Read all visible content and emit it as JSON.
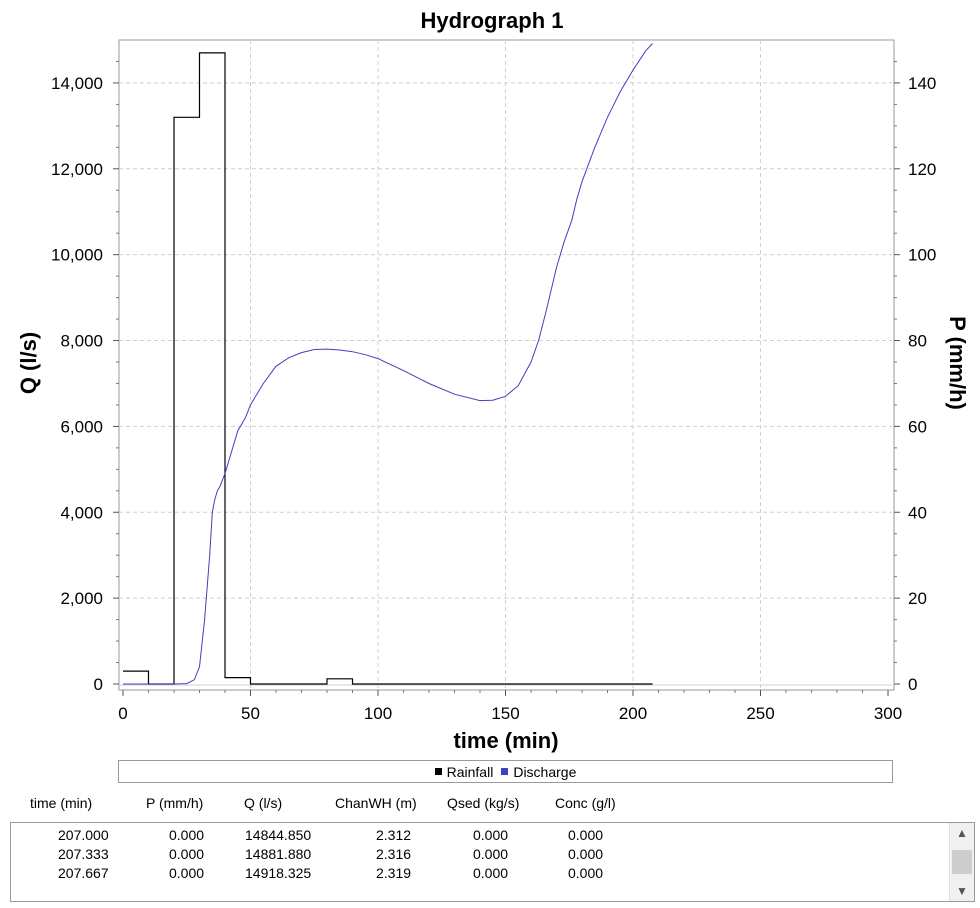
{
  "chart_data": {
    "type": "line",
    "title": "Hydrograph 1",
    "xlabel": "time (min)",
    "ylabel": "Q (l/s)",
    "y2label": "P (mm/h)",
    "xlim": [
      0,
      300
    ],
    "ylim": [
      0,
      15000
    ],
    "y2lim": [
      0,
      150
    ],
    "xticks": [
      "0",
      "50",
      "100",
      "150",
      "200",
      "250",
      "300"
    ],
    "yticks": [
      "0",
      "2,000",
      "4,000",
      "6,000",
      "8,000",
      "10,000",
      "12,000",
      "14,000"
    ],
    "y2ticks": [
      "0",
      "20",
      "40",
      "60",
      "80",
      "100",
      "120",
      "140"
    ],
    "grid": true,
    "legend_position": "bottom",
    "series": [
      {
        "name": "Rainfall",
        "axis": "right",
        "style": "step",
        "color": "#000000",
        "x": [
          0,
          10,
          10,
          20,
          20,
          30,
          30,
          40,
          40,
          50,
          50,
          80,
          80,
          90,
          90,
          207.667
        ],
        "y": [
          3,
          3,
          0,
          0,
          132,
          132,
          147,
          147,
          1.5,
          1.5,
          0,
          0,
          1.2,
          1.2,
          0,
          0
        ]
      },
      {
        "name": "Discharge",
        "axis": "left",
        "style": "line",
        "color": "#4040c0",
        "x": [
          0,
          20,
          25,
          28,
          30,
          32,
          34,
          35,
          36,
          37,
          38,
          40,
          42,
          45,
          48,
          50,
          55,
          60,
          65,
          70,
          75,
          80,
          85,
          90,
          95,
          100,
          110,
          120,
          130,
          140,
          145,
          150,
          155,
          160,
          163,
          166,
          170,
          173,
          176,
          178,
          180,
          185,
          190,
          195,
          200,
          205,
          207.667
        ],
        "y": [
          0,
          0,
          10,
          100,
          400,
          1500,
          3000,
          4000,
          4300,
          4500,
          4600,
          4900,
          5300,
          5900,
          6200,
          6500,
          7000,
          7400,
          7600,
          7720,
          7790,
          7800,
          7780,
          7740,
          7670,
          7580,
          7300,
          7000,
          6750,
          6600,
          6610,
          6700,
          6950,
          7500,
          8000,
          8700,
          9700,
          10300,
          10800,
          11300,
          11700,
          12500,
          13200,
          13800,
          14300,
          14750,
          14918.325
        ]
      }
    ]
  },
  "table": {
    "headers": [
      "time (min)",
      "P (mm/h)",
      "Q (l/s)",
      "ChanWH (m)",
      "Qsed (kg/s)",
      "Conc (g/l)"
    ],
    "rows": [
      [
        "207.000",
        "0.000",
        "14844.850",
        "2.312",
        "0.000",
        "0.000"
      ],
      [
        "207.333",
        "0.000",
        "14881.880",
        "2.316",
        "0.000",
        "0.000"
      ],
      [
        "207.667",
        "0.000",
        "14918.325",
        "2.319",
        "0.000",
        "0.000"
      ]
    ]
  }
}
